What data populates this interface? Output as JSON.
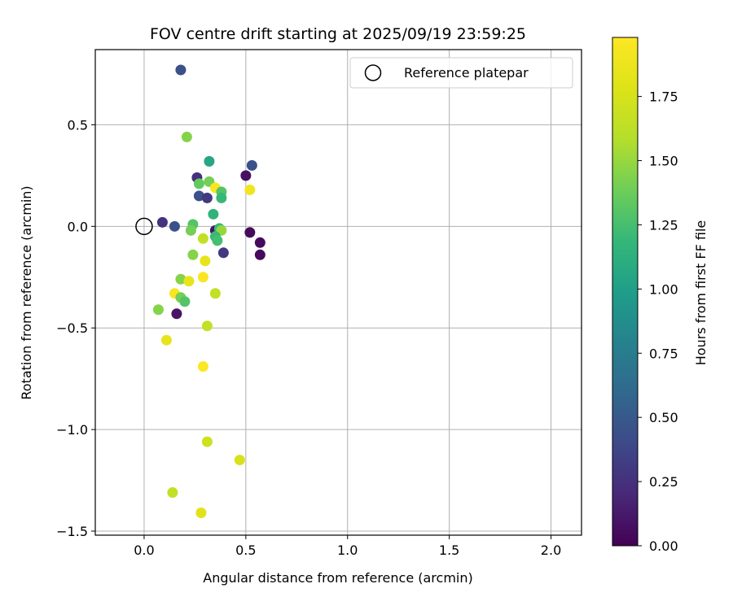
{
  "chart_data": {
    "type": "scatter",
    "title": "FOV centre drift starting at 2025/09/19 23:59:25",
    "xlabel": "Angular distance from reference (arcmin)",
    "ylabel": "Rotation from reference (arcmin)",
    "xlim": [
      -0.24,
      2.15
    ],
    "ylim": [
      -1.52,
      0.87
    ],
    "xticks": [
      0.0,
      0.5,
      1.0,
      1.5,
      2.0
    ],
    "xtick_labels": [
      "0.0",
      "0.5",
      "1.0",
      "1.5",
      "2.0"
    ],
    "yticks": [
      -1.5,
      -1.0,
      -0.5,
      0.0,
      0.5
    ],
    "ytick_labels": [
      "−1.5",
      "−1.0",
      "−0.5",
      "0.0",
      "0.5"
    ],
    "grid": true,
    "colormap": "viridis",
    "colorbar": {
      "label": "Hours from first FF file",
      "range": [
        0.0,
        1.98
      ],
      "ticks": [
        0.0,
        0.25,
        0.5,
        0.75,
        1.0,
        1.25,
        1.5,
        1.75
      ],
      "tick_labels": [
        "0.00",
        "0.25",
        "0.50",
        "0.75",
        "1.00",
        "1.25",
        "1.50",
        "1.75"
      ]
    },
    "legend": {
      "label": "Reference platepar",
      "position": "top-right"
    },
    "reference_point": {
      "x": 0.0,
      "y": 0.0
    },
    "points": [
      {
        "x": 0.18,
        "y": 0.77,
        "c": 0.45
      },
      {
        "x": 0.21,
        "y": 0.44,
        "c": 1.45
      },
      {
        "x": 0.32,
        "y": 0.32,
        "c": 1.05
      },
      {
        "x": 0.53,
        "y": 0.3,
        "c": 0.45
      },
      {
        "x": 0.5,
        "y": 0.25,
        "c": 0.08
      },
      {
        "x": 0.26,
        "y": 0.24,
        "c": 0.25
      },
      {
        "x": 0.32,
        "y": 0.22,
        "c": 1.4
      },
      {
        "x": 0.27,
        "y": 0.21,
        "c": 1.35
      },
      {
        "x": 0.35,
        "y": 0.19,
        "c": 1.95
      },
      {
        "x": 0.52,
        "y": 0.18,
        "c": 1.9
      },
      {
        "x": 0.38,
        "y": 0.17,
        "c": 1.3
      },
      {
        "x": 0.27,
        "y": 0.15,
        "c": 0.45
      },
      {
        "x": 0.31,
        "y": 0.14,
        "c": 0.3
      },
      {
        "x": 0.38,
        "y": 0.14,
        "c": 1.2
      },
      {
        "x": 0.34,
        "y": 0.06,
        "c": 1.15
      },
      {
        "x": 0.09,
        "y": 0.02,
        "c": 0.25
      },
      {
        "x": 0.15,
        "y": 0.0,
        "c": 0.45
      },
      {
        "x": 0.24,
        "y": 0.01,
        "c": 1.3
      },
      {
        "x": 0.23,
        "y": -0.02,
        "c": 1.4
      },
      {
        "x": 0.35,
        "y": -0.02,
        "c": 0.1
      },
      {
        "x": 0.37,
        "y": -0.01,
        "c": 1.2
      },
      {
        "x": 0.38,
        "y": -0.02,
        "c": 1.5
      },
      {
        "x": 0.52,
        "y": -0.03,
        "c": 0.05
      },
      {
        "x": 0.35,
        "y": -0.05,
        "c": 1.2
      },
      {
        "x": 0.29,
        "y": -0.06,
        "c": 1.65
      },
      {
        "x": 0.36,
        "y": -0.07,
        "c": 1.25
      },
      {
        "x": 0.57,
        "y": -0.08,
        "c": 0.05
      },
      {
        "x": 0.39,
        "y": -0.13,
        "c": 0.3
      },
      {
        "x": 0.57,
        "y": -0.14,
        "c": 0.05
      },
      {
        "x": 0.24,
        "y": -0.14,
        "c": 1.45
      },
      {
        "x": 0.3,
        "y": -0.17,
        "c": 1.85
      },
      {
        "x": 0.29,
        "y": -0.25,
        "c": 1.95
      },
      {
        "x": 0.18,
        "y": -0.26,
        "c": 1.45
      },
      {
        "x": 0.22,
        "y": -0.27,
        "c": 1.85
      },
      {
        "x": 0.15,
        "y": -0.33,
        "c": 1.95
      },
      {
        "x": 0.35,
        "y": -0.33,
        "c": 1.65
      },
      {
        "x": 0.18,
        "y": -0.35,
        "c": 1.4
      },
      {
        "x": 0.2,
        "y": -0.37,
        "c": 1.3
      },
      {
        "x": 0.07,
        "y": -0.41,
        "c": 1.45
      },
      {
        "x": 0.16,
        "y": -0.43,
        "c": 0.1
      },
      {
        "x": 0.31,
        "y": -0.49,
        "c": 1.65
      },
      {
        "x": 0.11,
        "y": -0.56,
        "c": 1.85
      },
      {
        "x": 0.29,
        "y": -0.69,
        "c": 1.97
      },
      {
        "x": 0.31,
        "y": -1.06,
        "c": 1.7
      },
      {
        "x": 0.47,
        "y": -1.15,
        "c": 1.75
      },
      {
        "x": 0.14,
        "y": -1.31,
        "c": 1.65
      },
      {
        "x": 0.28,
        "y": -1.41,
        "c": 1.8
      }
    ]
  }
}
